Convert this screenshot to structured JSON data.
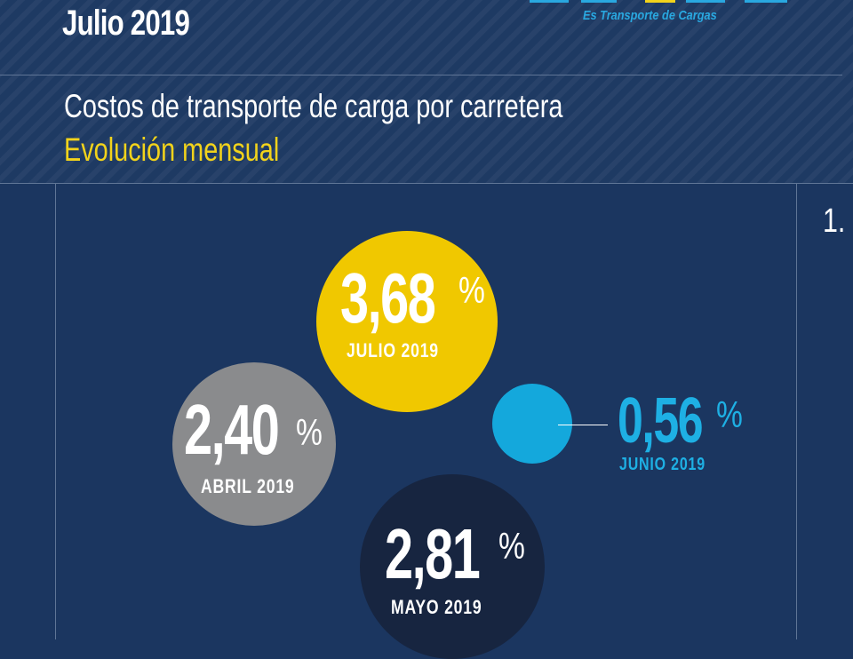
{
  "header": {
    "date_title": "Julio 2019",
    "logo_tagline": "Es Transporte de Cargas",
    "title": "Costos de transporte de carga por carretera",
    "subtitle": "Evolución mensual",
    "edge_text": "1."
  },
  "bubbles": [
    {
      "month": "JULIO 2019",
      "value": "3,68",
      "unit": "%",
      "color": "#f0c800"
    },
    {
      "month": "ABRIL 2019",
      "value": "2,40",
      "unit": "%",
      "color": "#8a8b8d"
    },
    {
      "month": "JUNIO 2019",
      "value": "0,56",
      "unit": "%",
      "color": "#14a8dc"
    },
    {
      "month": "MAYO 2019",
      "value": "2,81",
      "unit": "%",
      "color": "#172540"
    }
  ],
  "colors": {
    "background": "#1b3660",
    "accent_yellow": "#f2d31b",
    "accent_cyan": "#1eb0e4",
    "logo_blue": "#29a8e0"
  }
}
